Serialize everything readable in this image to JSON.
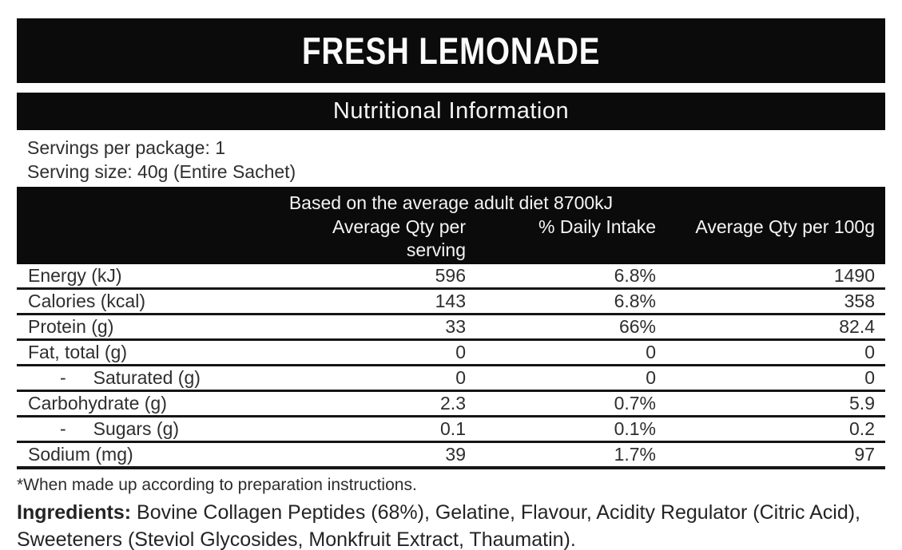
{
  "colors": {
    "bar_background": "#0b0b0c",
    "bar_text": "#f5f5f5",
    "body_text": "#2e2e2e"
  },
  "header": {
    "title": "FRESH LEMONADE"
  },
  "section": {
    "title": "Nutritional Information"
  },
  "serving": {
    "servings_per_package": "Servings per package: 1",
    "serving_size": "Serving size: 40g (Entire Sachet)"
  },
  "table": {
    "banner": "Based on the average adult diet 8700kJ",
    "columns": {
      "qty_serving_lines": [
        "Average Qty per",
        "serving"
      ],
      "daily_intake": "% Daily Intake",
      "qty_100g": "Average Qty per 100g"
    },
    "rows": [
      {
        "label": "Energy (kJ)",
        "dash": "",
        "per_serving": "596",
        "daily": "6.8%",
        "per_100g": "1490"
      },
      {
        "label": "Calories (kcal)",
        "dash": "",
        "per_serving": "143",
        "daily": "6.8%",
        "per_100g": "358"
      },
      {
        "label": "Protein (g)",
        "dash": "",
        "per_serving": "33",
        "daily": "66%",
        "per_100g": "82.4"
      },
      {
        "label": "Fat, total (g)",
        "dash": "",
        "per_serving": "0",
        "daily": "0",
        "per_100g": "0"
      },
      {
        "label": "Saturated (g)",
        "dash": "-",
        "per_serving": "0",
        "daily": "0",
        "per_100g": "0"
      },
      {
        "label": "Carbohydrate (g)",
        "dash": "",
        "per_serving": "2.3",
        "daily": "0.7%",
        "per_100g": "5.9"
      },
      {
        "label": "Sugars (g)",
        "dash": "-",
        "per_serving": "0.1",
        "daily": "0.1%",
        "per_100g": "0.2"
      },
      {
        "label": "Sodium (mg)",
        "dash": "",
        "per_serving": "39",
        "daily": "1.7%",
        "per_100g": "97"
      }
    ]
  },
  "footnote": {
    "text": "*When made up according to preparation instructions."
  },
  "ingredients": {
    "label": "Ingredients:",
    "line1_rest": " Bovine Collagen Peptides (68%), Gelatine, Flavour, Acidity Regulator (Citric Acid),",
    "line2": "Sweeteners (Steviol Glycosides, Monkfruit Extract, Thaumatin)."
  }
}
